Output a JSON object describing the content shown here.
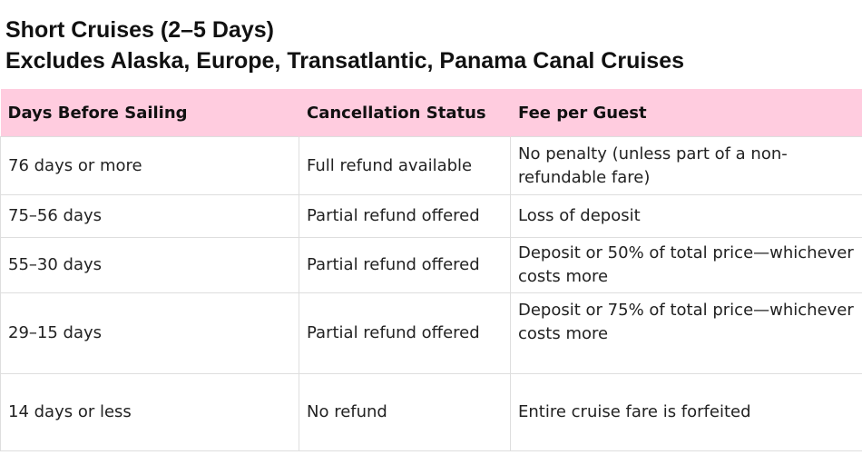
{
  "title": {
    "line1": "Short Cruises (2–5 Days)",
    "line2": "Excludes Alaska, Europe, Transatlantic, Panama Canal Cruises"
  },
  "colors": {
    "header_bg": "#ffccdf",
    "grid": "#dedede"
  },
  "table": {
    "headers": [
      "Days Before Sailing",
      "Cancellation Status",
      "Fee per Guest"
    ],
    "rows": [
      [
        "76 days or more",
        "Full refund available",
        "No penalty (unless part of a non-refundable fare)"
      ],
      [
        "75–56 days",
        "Partial refund offered",
        "Loss of deposit"
      ],
      [
        "55–30 days",
        "Partial refund offered",
        "Deposit or 50% of total price—whichever costs more"
      ],
      [
        "29–15 days",
        "Partial refund offered",
        "Deposit or 75% of total price—whichever costs more"
      ],
      [
        "14 days or less",
        "No refund",
        "Entire cruise fare is forfeited"
      ]
    ]
  }
}
